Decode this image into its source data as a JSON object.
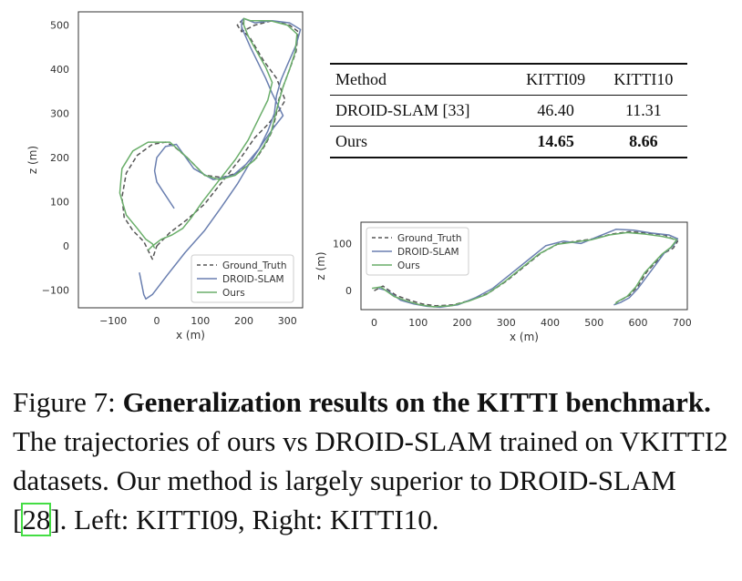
{
  "chart_data": [
    {
      "type": "line",
      "title": "",
      "xlabel": "x (m)",
      "ylabel": "z (m)",
      "xlim": [
        -180,
        335
      ],
      "ylim": [
        -140,
        530
      ],
      "xticks": [
        "−100",
        "0",
        "100",
        "200",
        "300"
      ],
      "xtick_values": [
        -100,
        0,
        100,
        200,
        300
      ],
      "yticks": [
        "−100",
        "0",
        "100",
        "200",
        "300",
        "400",
        "500"
      ],
      "ytick_values": [
        -100,
        0,
        100,
        200,
        300,
        400,
        500
      ],
      "legend": "bottom-right",
      "series": [
        {
          "name": "Ground_Truth",
          "color": "#555555",
          "dash": true,
          "x": [
            0,
            30,
            70,
            110,
            150,
            190,
            225,
            255,
            280,
            295,
            275,
            245,
            215,
            195,
            200,
            200,
            185,
            195,
            225,
            265,
            305,
            325,
            320,
            305,
            290,
            280,
            275,
            265,
            250,
            230,
            205,
            185,
            150,
            110,
            70,
            40,
            20,
            -10,
            -45,
            -70,
            -80,
            -75,
            -55,
            -30,
            -10,
            0
          ],
          "y": [
            0,
            30,
            60,
            95,
            145,
            195,
            245,
            275,
            305,
            330,
            380,
            420,
            470,
            490,
            510,
            515,
            500,
            485,
            500,
            510,
            500,
            485,
            440,
            400,
            360,
            330,
            300,
            260,
            230,
            200,
            180,
            165,
            155,
            160,
            200,
            225,
            235,
            230,
            205,
            165,
            110,
            65,
            35,
            10,
            -30,
            0
          ]
        },
        {
          "name": "DROID-SLAM",
          "color": "#6a7fb0",
          "dash": false,
          "x": [
            -40,
            -30,
            -25,
            -10,
            25,
            65,
            110,
            150,
            185,
            215,
            245,
            270,
            290,
            265,
            250,
            235,
            215,
            195,
            195,
            200,
            225,
            265,
            305,
            330,
            320,
            300,
            285,
            275,
            270,
            255,
            235,
            205,
            175,
            130,
            85,
            45,
            20,
            0,
            -5,
            0,
            20,
            40
          ],
          "y": [
            -60,
            -110,
            -120,
            -110,
            -65,
            -15,
            35,
            90,
            140,
            190,
            235,
            270,
            295,
            345,
            380,
            410,
            450,
            495,
            510,
            515,
            505,
            510,
            505,
            490,
            455,
            410,
            375,
            340,
            300,
            260,
            220,
            185,
            160,
            150,
            175,
            230,
            225,
            200,
            170,
            145,
            115,
            85
          ]
        },
        {
          "name": "Ours",
          "color": "#6aae6a",
          "dash": false,
          "x": [
            -20,
            -10,
            10,
            35,
            60,
            80,
            105,
            140,
            180,
            210,
            235,
            255,
            265,
            250,
            230,
            210,
            200,
            200,
            215,
            260,
            300,
            322,
            318,
            305,
            290,
            280,
            272,
            262,
            245,
            225,
            200,
            180,
            145,
            110,
            70,
            30,
            -20,
            -55,
            -80,
            -85,
            -70,
            -45,
            -25,
            -10,
            -5
          ],
          "y": [
            -10,
            0,
            15,
            25,
            40,
            65,
            100,
            145,
            195,
            240,
            290,
            330,
            370,
            405,
            440,
            475,
            500,
            515,
            510,
            510,
            500,
            480,
            440,
            400,
            360,
            325,
            295,
            255,
            225,
            195,
            175,
            160,
            150,
            160,
            200,
            235,
            235,
            215,
            175,
            120,
            70,
            40,
            15,
            5,
            -5
          ]
        }
      ]
    },
    {
      "type": "line",
      "title": "",
      "xlabel": "x (m)",
      "ylabel": "z (m)",
      "xlim": [
        -30,
        712
      ],
      "ylim": [
        -40,
        145
      ],
      "xticks": [
        "0",
        "100",
        "200",
        "300",
        "400",
        "500",
        "600",
        "700"
      ],
      "xtick_values": [
        0,
        100,
        200,
        300,
        400,
        500,
        600,
        700
      ],
      "yticks": [
        "0",
        "100"
      ],
      "ytick_values": [
        0,
        100
      ],
      "legend": "top-left",
      "series": [
        {
          "name": "Ground_Truth",
          "color": "#555555",
          "dash": true,
          "x": [
            0,
            20,
            50,
            80,
            110,
            140,
            180,
            220,
            260,
            300,
            340,
            380,
            420,
            460,
            500,
            540,
            580,
            620,
            660,
            690,
            680,
            660,
            640,
            620,
            600,
            580,
            560,
            550
          ],
          "y": [
            0,
            10,
            -10,
            -20,
            -28,
            -32,
            -30,
            -20,
            -5,
            20,
            50,
            80,
            100,
            105,
            110,
            120,
            125,
            122,
            118,
            105,
            90,
            80,
            60,
            40,
            10,
            -10,
            -20,
            -25
          ]
        },
        {
          "name": "DROID-SLAM",
          "color": "#6a7fb0",
          "dash": false,
          "x": [
            10,
            30,
            60,
            90,
            120,
            150,
            190,
            230,
            270,
            310,
            350,
            390,
            430,
            470,
            510,
            550,
            590,
            630,
            670,
            690,
            680,
            660,
            640,
            620,
            600,
            580,
            560,
            545
          ],
          "y": [
            5,
            0,
            -20,
            -28,
            -33,
            -35,
            -30,
            -15,
            5,
            35,
            65,
            95,
            105,
            100,
            115,
            130,
            128,
            122,
            118,
            110,
            95,
            80,
            55,
            30,
            5,
            -15,
            -25,
            -30
          ]
        },
        {
          "name": "Ours",
          "color": "#6aae6a",
          "dash": false,
          "x": [
            -5,
            15,
            45,
            75,
            105,
            135,
            175,
            215,
            255,
            295,
            335,
            375,
            415,
            455,
            495,
            535,
            575,
            615,
            655,
            688,
            675,
            655,
            635,
            615,
            595,
            575,
            555,
            548
          ],
          "y": [
            5,
            8,
            -12,
            -22,
            -30,
            -34,
            -32,
            -22,
            -8,
            18,
            48,
            78,
            98,
            103,
            108,
            118,
            123,
            120,
            115,
            108,
            92,
            78,
            58,
            38,
            8,
            -12,
            -22,
            -28
          ]
        }
      ]
    }
  ],
  "table": {
    "headers": [
      "Method",
      "KITTI09",
      "KITTI10"
    ],
    "rows": [
      {
        "method": "DROID-SLAM [33]",
        "kitti09": "46.40",
        "kitti10": "11.31"
      },
      {
        "method": "Ours",
        "kitti09": "14.65",
        "kitti10": "8.66"
      }
    ]
  },
  "caption": {
    "prefix": "Figure 7: ",
    "bold": "Generalization results on the KITTI benchmark.",
    "text1": " The trajectories of ours vs DROID-SLAM trained on VKITTI2 datasets. Our method is largely superior to DROID-SLAM [",
    "ref": "28",
    "text2": "].  Left: KITTI09, Right: KITTI10."
  }
}
